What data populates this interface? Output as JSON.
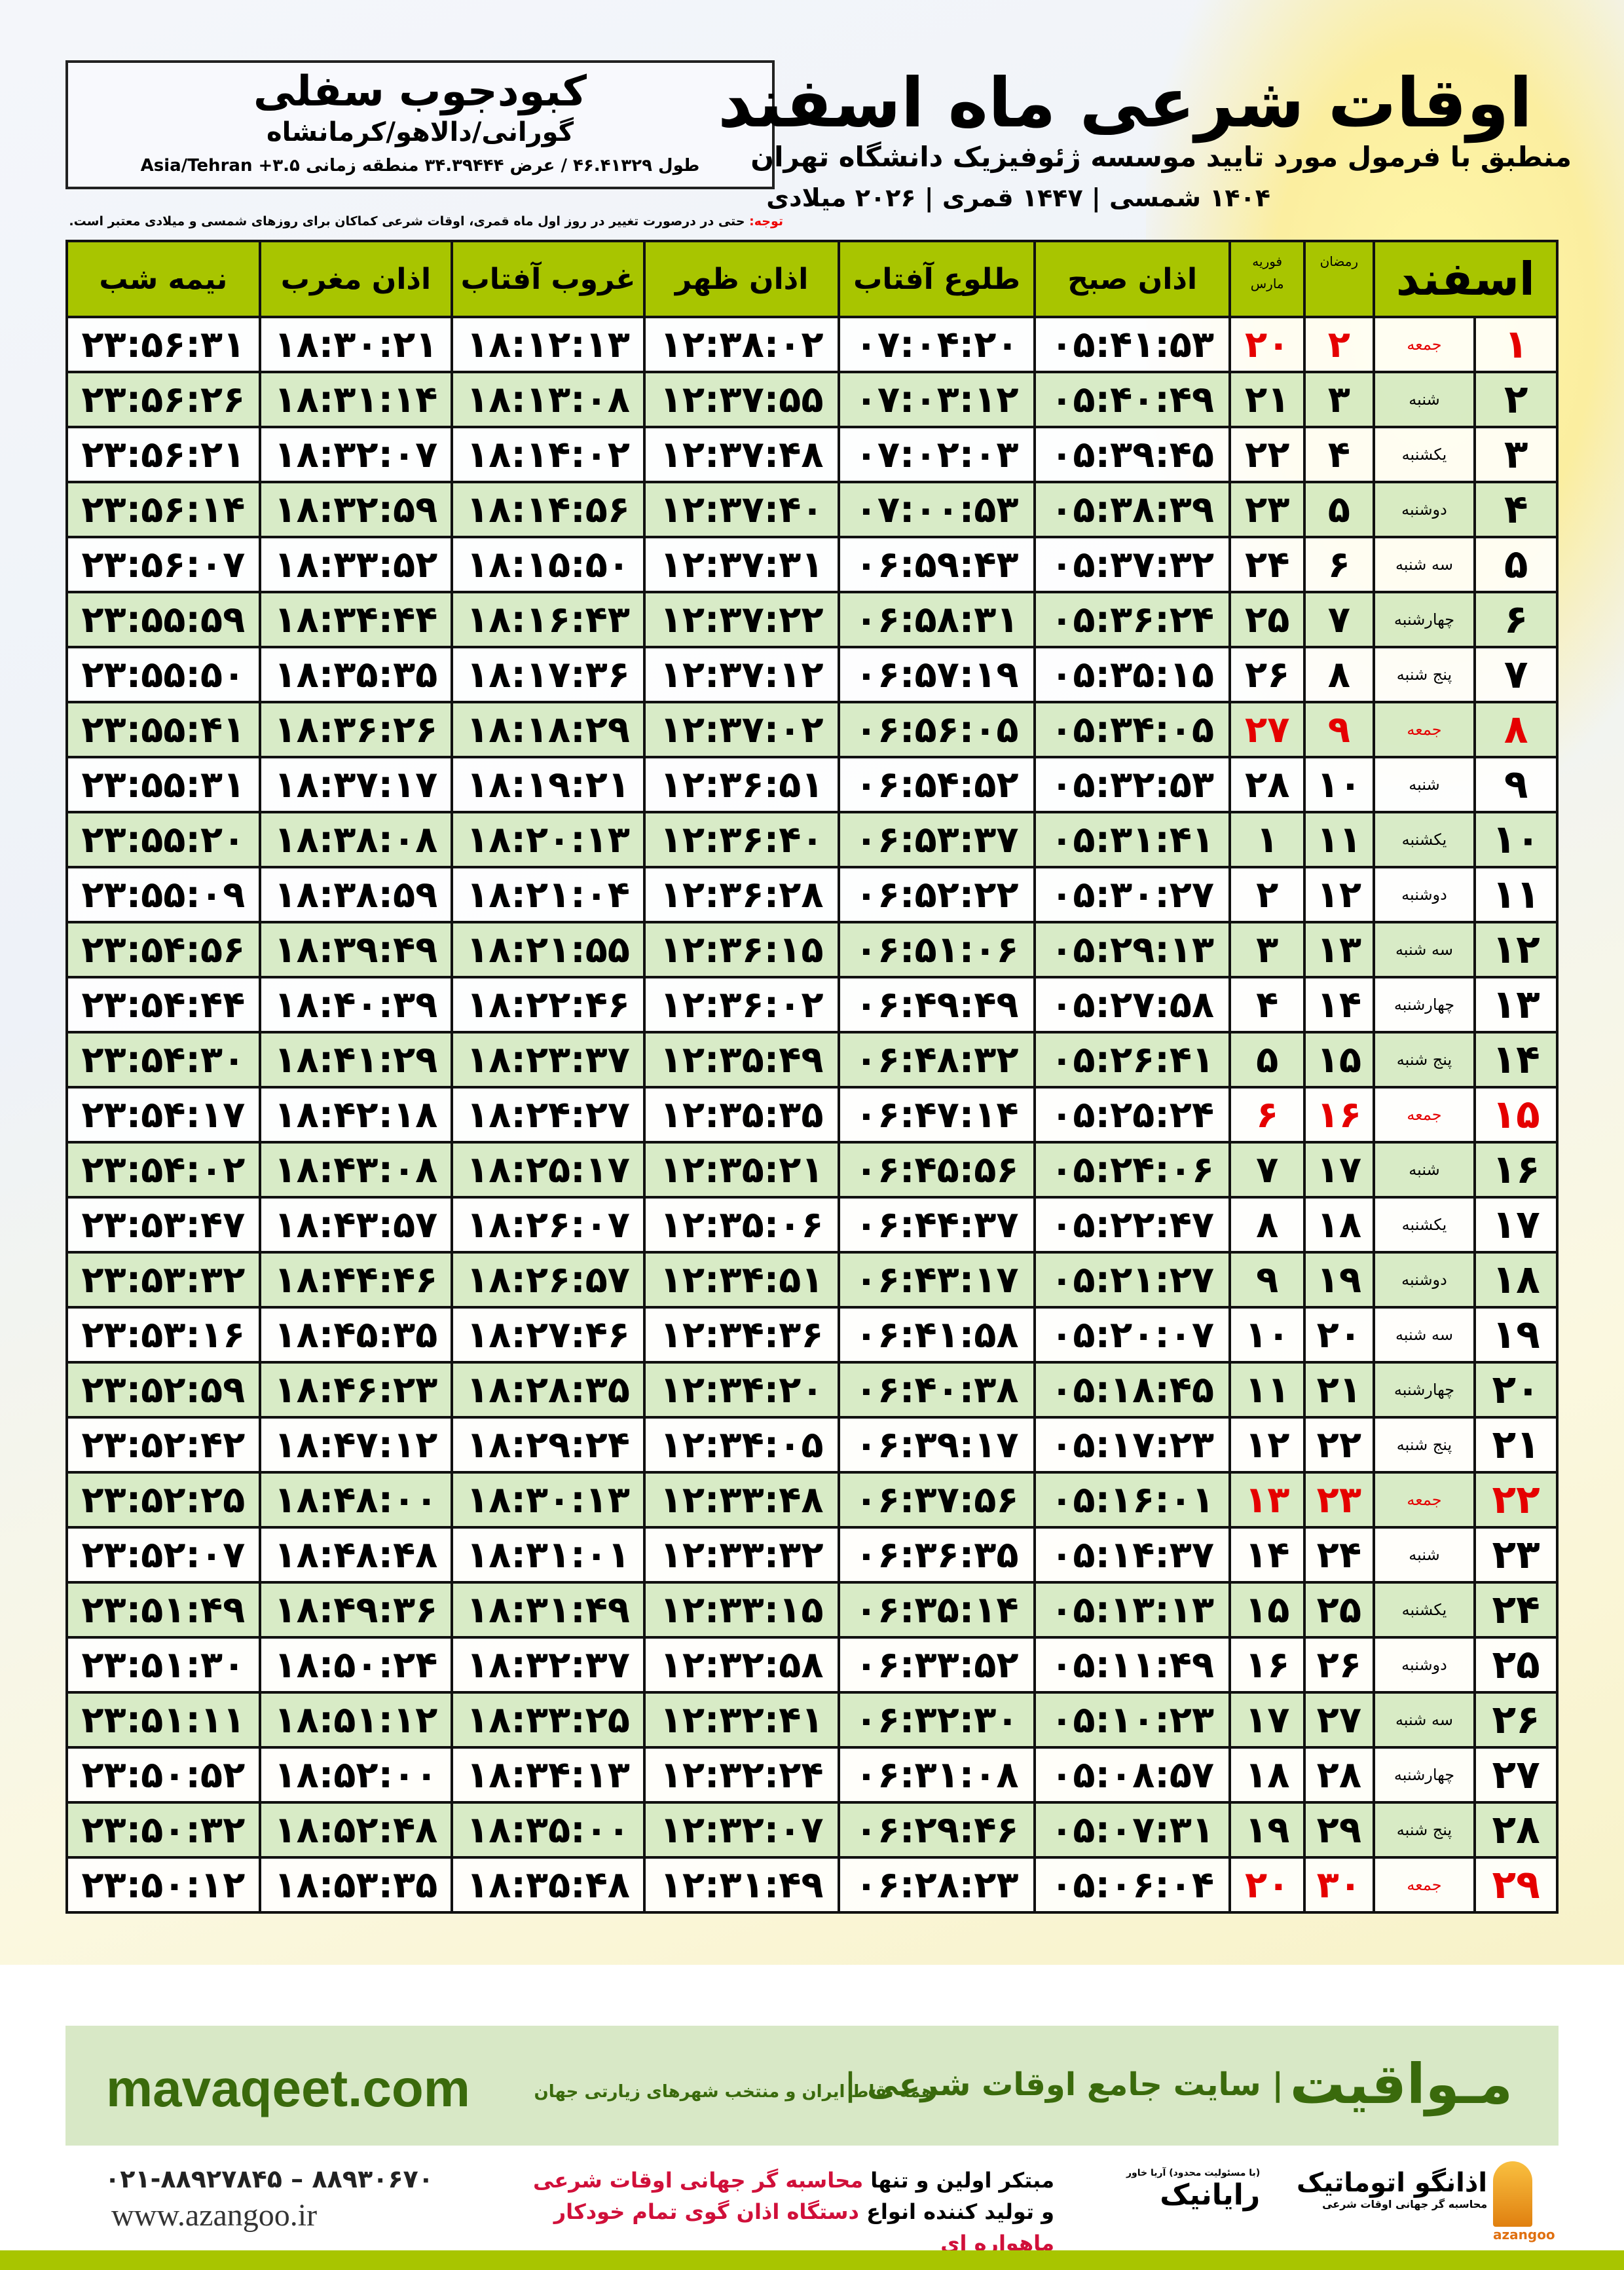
{
  "header": {
    "title": "اوقات شرعی ماه اسفند",
    "subtitle": "منطبق با فرمول مورد تایید موسسه ژئوفیزیک دانشگاه تهران",
    "years": "۱۴۰۴ شمسی | ۱۴۴۷ قمری | ۲۰۲۶ میلادی"
  },
  "location": {
    "name": "کبودجوب سفلی",
    "region": "گورانی/دالاهو/کرمانشاه",
    "coords": "طول ۴۶.۴۱۳۲۹ / عرض ۳۴.۳۹۴۴۴ منطقه زمانی ۳.۵+ Asia/Tehran"
  },
  "note": {
    "label": "توجه:",
    "text": " حتی در درصورت تغییر در روز اول ماه قمری، اوقات شرعی کماکان برای روزهای شمسی و میلادی معتبر است."
  },
  "colors": {
    "header_green": "#a8c500",
    "friday_red": "#e50000",
    "row_alt": "#d6eac4"
  },
  "table": {
    "columns": {
      "month": "اسفند",
      "ramadan": "رمضان",
      "greg_top": "فوریه",
      "greg_bottom": "مارس",
      "fajr": "اذان صبح",
      "sunrise": "طلوع آفتاب",
      "dhuhr": "اذان ظهر",
      "sunset": "غروب آفتاب",
      "maghrib": "اذان مغرب",
      "midnight": "نیمه شب"
    },
    "rows": [
      {
        "day": "۱",
        "weekday": "جمعه",
        "ramadan": "۲",
        "greg": "۲۰",
        "fajr": "۰۵:۴۱:۵۳",
        "sunrise": "۰۷:۰۴:۲۰",
        "dhuhr": "۱۲:۳۸:۰۲",
        "sunset": "۱۸:۱۲:۱۳",
        "maghrib": "۱۸:۳۰:۲۱",
        "midnight": "۲۳:۵۶:۳۱",
        "holiday": true
      },
      {
        "day": "۲",
        "weekday": "شنبه",
        "ramadan": "۳",
        "greg": "۲۱",
        "fajr": "۰۵:۴۰:۴۹",
        "sunrise": "۰۷:۰۳:۱۲",
        "dhuhr": "۱۲:۳۷:۵۵",
        "sunset": "۱۸:۱۳:۰۸",
        "maghrib": "۱۸:۳۱:۱۴",
        "midnight": "۲۳:۵۶:۲۶"
      },
      {
        "day": "۳",
        "weekday": "یکشنبه",
        "ramadan": "۴",
        "greg": "۲۲",
        "fajr": "۰۵:۳۹:۴۵",
        "sunrise": "۰۷:۰۲:۰۳",
        "dhuhr": "۱۲:۳۷:۴۸",
        "sunset": "۱۸:۱۴:۰۲",
        "maghrib": "۱۸:۳۲:۰۷",
        "midnight": "۲۳:۵۶:۲۱"
      },
      {
        "day": "۴",
        "weekday": "دوشنبه",
        "ramadan": "۵",
        "greg": "۲۳",
        "fajr": "۰۵:۳۸:۳۹",
        "sunrise": "۰۷:۰۰:۵۳",
        "dhuhr": "۱۲:۳۷:۴۰",
        "sunset": "۱۸:۱۴:۵۶",
        "maghrib": "۱۸:۳۲:۵۹",
        "midnight": "۲۳:۵۶:۱۴"
      },
      {
        "day": "۵",
        "weekday": "سه شنبه",
        "ramadan": "۶",
        "greg": "۲۴",
        "fajr": "۰۵:۳۷:۳۲",
        "sunrise": "۰۶:۵۹:۴۳",
        "dhuhr": "۱۲:۳۷:۳۱",
        "sunset": "۱۸:۱۵:۵۰",
        "maghrib": "۱۸:۳۳:۵۲",
        "midnight": "۲۳:۵۶:۰۷"
      },
      {
        "day": "۶",
        "weekday": "چهارشنبه",
        "ramadan": "۷",
        "greg": "۲۵",
        "fajr": "۰۵:۳۶:۲۴",
        "sunrise": "۰۶:۵۸:۳۱",
        "dhuhr": "۱۲:۳۷:۲۲",
        "sunset": "۱۸:۱۶:۴۳",
        "maghrib": "۱۸:۳۴:۴۴",
        "midnight": "۲۳:۵۵:۵۹"
      },
      {
        "day": "۷",
        "weekday": "پنج شنبه",
        "ramadan": "۸",
        "greg": "۲۶",
        "fajr": "۰۵:۳۵:۱۵",
        "sunrise": "۰۶:۵۷:۱۹",
        "dhuhr": "۱۲:۳۷:۱۲",
        "sunset": "۱۸:۱۷:۳۶",
        "maghrib": "۱۸:۳۵:۳۵",
        "midnight": "۲۳:۵۵:۵۰"
      },
      {
        "day": "۸",
        "weekday": "جمعه",
        "ramadan": "۹",
        "greg": "۲۷",
        "fajr": "۰۵:۳۴:۰۵",
        "sunrise": "۰۶:۵۶:۰۵",
        "dhuhr": "۱۲:۳۷:۰۲",
        "sunset": "۱۸:۱۸:۲۹",
        "maghrib": "۱۸:۳۶:۲۶",
        "midnight": "۲۳:۵۵:۴۱",
        "holiday": true
      },
      {
        "day": "۹",
        "weekday": "شنبه",
        "ramadan": "۱۰",
        "greg": "۲۸",
        "fajr": "۰۵:۳۲:۵۳",
        "sunrise": "۰۶:۵۴:۵۲",
        "dhuhr": "۱۲:۳۶:۵۱",
        "sunset": "۱۸:۱۹:۲۱",
        "maghrib": "۱۸:۳۷:۱۷",
        "midnight": "۲۳:۵۵:۳۱"
      },
      {
        "day": "۱۰",
        "weekday": "یکشنبه",
        "ramadan": "۱۱",
        "greg": "۱",
        "fajr": "۰۵:۳۱:۴۱",
        "sunrise": "۰۶:۵۳:۳۷",
        "dhuhr": "۱۲:۳۶:۴۰",
        "sunset": "۱۸:۲۰:۱۳",
        "maghrib": "۱۸:۳۸:۰۸",
        "midnight": "۲۳:۵۵:۲۰"
      },
      {
        "day": "۱۱",
        "weekday": "دوشنبه",
        "ramadan": "۱۲",
        "greg": "۲",
        "fajr": "۰۵:۳۰:۲۷",
        "sunrise": "۰۶:۵۲:۲۲",
        "dhuhr": "۱۲:۳۶:۲۸",
        "sunset": "۱۸:۲۱:۰۴",
        "maghrib": "۱۸:۳۸:۵۹",
        "midnight": "۲۳:۵۵:۰۹"
      },
      {
        "day": "۱۲",
        "weekday": "سه شنبه",
        "ramadan": "۱۳",
        "greg": "۳",
        "fajr": "۰۵:۲۹:۱۳",
        "sunrise": "۰۶:۵۱:۰۶",
        "dhuhr": "۱۲:۳۶:۱۵",
        "sunset": "۱۸:۲۱:۵۵",
        "maghrib": "۱۸:۳۹:۴۹",
        "midnight": "۲۳:۵۴:۵۶"
      },
      {
        "day": "۱۳",
        "weekday": "چهارشنبه",
        "ramadan": "۱۴",
        "greg": "۴",
        "fajr": "۰۵:۲۷:۵۸",
        "sunrise": "۰۶:۴۹:۴۹",
        "dhuhr": "۱۲:۳۶:۰۲",
        "sunset": "۱۸:۲۲:۴۶",
        "maghrib": "۱۸:۴۰:۳۹",
        "midnight": "۲۳:۵۴:۴۴"
      },
      {
        "day": "۱۴",
        "weekday": "پنج شنبه",
        "ramadan": "۱۵",
        "greg": "۵",
        "fajr": "۰۵:۲۶:۴۱",
        "sunrise": "۰۶:۴۸:۳۲",
        "dhuhr": "۱۲:۳۵:۴۹",
        "sunset": "۱۸:۲۳:۳۷",
        "maghrib": "۱۸:۴۱:۲۹",
        "midnight": "۲۳:۵۴:۳۰"
      },
      {
        "day": "۱۵",
        "weekday": "جمعه",
        "ramadan": "۱۶",
        "greg": "۶",
        "fajr": "۰۵:۲۵:۲۴",
        "sunrise": "۰۶:۴۷:۱۴",
        "dhuhr": "۱۲:۳۵:۳۵",
        "sunset": "۱۸:۲۴:۲۷",
        "maghrib": "۱۸:۴۲:۱۸",
        "midnight": "۲۳:۵۴:۱۷",
        "holiday": true
      },
      {
        "day": "۱۶",
        "weekday": "شنبه",
        "ramadan": "۱۷",
        "greg": "۷",
        "fajr": "۰۵:۲۴:۰۶",
        "sunrise": "۰۶:۴۵:۵۶",
        "dhuhr": "۱۲:۳۵:۲۱",
        "sunset": "۱۸:۲۵:۱۷",
        "maghrib": "۱۸:۴۳:۰۸",
        "midnight": "۲۳:۵۴:۰۲"
      },
      {
        "day": "۱۷",
        "weekday": "یکشنبه",
        "ramadan": "۱۸",
        "greg": "۸",
        "fajr": "۰۵:۲۲:۴۷",
        "sunrise": "۰۶:۴۴:۳۷",
        "dhuhr": "۱۲:۳۵:۰۶",
        "sunset": "۱۸:۲۶:۰۷",
        "maghrib": "۱۸:۴۳:۵۷",
        "midnight": "۲۳:۵۳:۴۷"
      },
      {
        "day": "۱۸",
        "weekday": "دوشنبه",
        "ramadan": "۱۹",
        "greg": "۹",
        "fajr": "۰۵:۲۱:۲۷",
        "sunrise": "۰۶:۴۳:۱۷",
        "dhuhr": "۱۲:۳۴:۵۱",
        "sunset": "۱۸:۲۶:۵۷",
        "maghrib": "۱۸:۴۴:۴۶",
        "midnight": "۲۳:۵۳:۳۲"
      },
      {
        "day": "۱۹",
        "weekday": "سه شنبه",
        "ramadan": "۲۰",
        "greg": "۱۰",
        "fajr": "۰۵:۲۰:۰۷",
        "sunrise": "۰۶:۴۱:۵۸",
        "dhuhr": "۱۲:۳۴:۳۶",
        "sunset": "۱۸:۲۷:۴۶",
        "maghrib": "۱۸:۴۵:۳۵",
        "midnight": "۲۳:۵۳:۱۶"
      },
      {
        "day": "۲۰",
        "weekday": "چهارشنبه",
        "ramadan": "۲۱",
        "greg": "۱۱",
        "fajr": "۰۵:۱۸:۴۵",
        "sunrise": "۰۶:۴۰:۳۸",
        "dhuhr": "۱۲:۳۴:۲۰",
        "sunset": "۱۸:۲۸:۳۵",
        "maghrib": "۱۸:۴۶:۲۳",
        "midnight": "۲۳:۵۲:۵۹"
      },
      {
        "day": "۲۱",
        "weekday": "پنج شنبه",
        "ramadan": "۲۲",
        "greg": "۱۲",
        "fajr": "۰۵:۱۷:۲۳",
        "sunrise": "۰۶:۳۹:۱۷",
        "dhuhr": "۱۲:۳۴:۰۵",
        "sunset": "۱۸:۲۹:۲۴",
        "maghrib": "۱۸:۴۷:۱۲",
        "midnight": "۲۳:۵۲:۴۲"
      },
      {
        "day": "۲۲",
        "weekday": "جمعه",
        "ramadan": "۲۳",
        "greg": "۱۳",
        "fajr": "۰۵:۱۶:۰۱",
        "sunrise": "۰۶:۳۷:۵۶",
        "dhuhr": "۱۲:۳۳:۴۸",
        "sunset": "۱۸:۳۰:۱۳",
        "maghrib": "۱۸:۴۸:۰۰",
        "midnight": "۲۳:۵۲:۲۵",
        "holiday": true
      },
      {
        "day": "۲۳",
        "weekday": "شنبه",
        "ramadan": "۲۴",
        "greg": "۱۴",
        "fajr": "۰۵:۱۴:۳۷",
        "sunrise": "۰۶:۳۶:۳۵",
        "dhuhr": "۱۲:۳۳:۳۲",
        "sunset": "۱۸:۳۱:۰۱",
        "maghrib": "۱۸:۴۸:۴۸",
        "midnight": "۲۳:۵۲:۰۷"
      },
      {
        "day": "۲۴",
        "weekday": "یکشنبه",
        "ramadan": "۲۵",
        "greg": "۱۵",
        "fajr": "۰۵:۱۳:۱۳",
        "sunrise": "۰۶:۳۵:۱۴",
        "dhuhr": "۱۲:۳۳:۱۵",
        "sunset": "۱۸:۳۱:۴۹",
        "maghrib": "۱۸:۴۹:۳۶",
        "midnight": "۲۳:۵۱:۴۹"
      },
      {
        "day": "۲۵",
        "weekday": "دوشنبه",
        "ramadan": "۲۶",
        "greg": "۱۶",
        "fajr": "۰۵:۱۱:۴۹",
        "sunrise": "۰۶:۳۳:۵۲",
        "dhuhr": "۱۲:۳۲:۵۸",
        "sunset": "۱۸:۳۲:۳۷",
        "maghrib": "۱۸:۵۰:۲۴",
        "midnight": "۲۳:۵۱:۳۰"
      },
      {
        "day": "۲۶",
        "weekday": "سه شنبه",
        "ramadan": "۲۷",
        "greg": "۱۷",
        "fajr": "۰۵:۱۰:۲۳",
        "sunrise": "۰۶:۳۲:۳۰",
        "dhuhr": "۱۲:۳۲:۴۱",
        "sunset": "۱۸:۳۳:۲۵",
        "maghrib": "۱۸:۵۱:۱۲",
        "midnight": "۲۳:۵۱:۱۱"
      },
      {
        "day": "۲۷",
        "weekday": "چهارشنبه",
        "ramadan": "۲۸",
        "greg": "۱۸",
        "fajr": "۰۵:۰۸:۵۷",
        "sunrise": "۰۶:۳۱:۰۸",
        "dhuhr": "۱۲:۳۲:۲۴",
        "sunset": "۱۸:۳۴:۱۳",
        "maghrib": "۱۸:۵۲:۰۰",
        "midnight": "۲۳:۵۰:۵۲"
      },
      {
        "day": "۲۸",
        "weekday": "پنج شنبه",
        "ramadan": "۲۹",
        "greg": "۱۹",
        "fajr": "۰۵:۰۷:۳۱",
        "sunrise": "۰۶:۲۹:۴۶",
        "dhuhr": "۱۲:۳۲:۰۷",
        "sunset": "۱۸:۳۵:۰۰",
        "maghrib": "۱۸:۵۲:۴۸",
        "midnight": "۲۳:۵۰:۳۲"
      },
      {
        "day": "۲۹",
        "weekday": "جمعه",
        "ramadan": "۳۰",
        "greg": "۲۰",
        "fajr": "۰۵:۰۶:۰۴",
        "sunrise": "۰۶:۲۸:۲۳",
        "dhuhr": "۱۲:۳۱:۴۹",
        "sunset": "۱۸:۳۵:۴۸",
        "maghrib": "۱۸:۵۳:۳۵",
        "midnight": "۲۳:۵۰:۱۲",
        "holiday": true
      }
    ]
  },
  "banner": {
    "brand": "مـواقیت",
    "tagline": "| سایت جامع اوقات شرعی |",
    "tagline2": "همه نقاط ایران و منتخب شهرهای زیارتی جهان",
    "site": "mavaqeet.com"
  },
  "footer": {
    "phone": "۰۲۱-۸۸۹۲۷۸۴۵ – ۸۸۹۳۰۶۷۰",
    "www": "www.azangoo.ir",
    "promo_line1_a": "مبتکر اولین و تنها ",
    "promo_line1_b": "محاسبه گر جهانی اوقات شرعی",
    "promo_line2_a": "و تولید کننده انواع ",
    "promo_line2_b": "دستگاه اذان گوی تمام خودکار ماهواره ای",
    "logo_rayanik": "رایانیک",
    "logo_rayanik_small": "(با مسئولیت محدود) آریا خاور",
    "logo_azangoo": "اذانگو اتوماتیک",
    "logo_azangoo_small": "محاسبه گر جهانی اوقات شرعی",
    "logo_azangoo_en": "azangoo"
  }
}
